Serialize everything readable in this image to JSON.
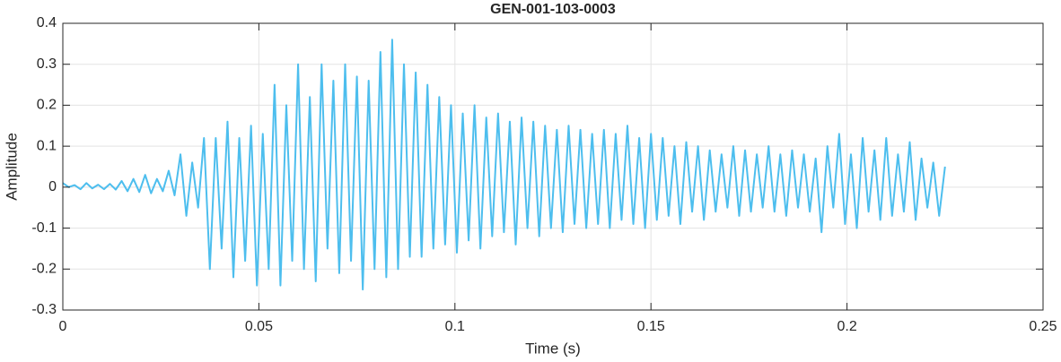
{
  "chart_data": {
    "type": "line",
    "title": "GEN-001-103-0003",
    "xlabel": "Time (s)",
    "ylabel": "Amplitude",
    "xlim": [
      0,
      0.25
    ],
    "ylim": [
      -0.3,
      0.4
    ],
    "xticks": [
      0,
      0.05,
      0.1,
      0.15,
      0.2,
      0.25
    ],
    "yticks": [
      -0.3,
      -0.2,
      -0.1,
      0,
      0.1,
      0.2,
      0.3,
      0.4
    ],
    "grid": true,
    "x": [
      0,
      0.0015,
      0.003,
      0.0045,
      0.006,
      0.0075,
      0.009,
      0.0105,
      0.012,
      0.0135,
      0.015,
      0.0165,
      0.018,
      0.0195,
      0.021,
      0.0225,
      0.024,
      0.0255,
      0.027,
      0.0285,
      0.03,
      0.0315,
      0.033,
      0.0345,
      0.036,
      0.0375,
      0.039,
      0.0405,
      0.042,
      0.0435,
      0.045,
      0.0465,
      0.048,
      0.0495,
      0.051,
      0.0525,
      0.054,
      0.0555,
      0.057,
      0.0585,
      0.06,
      0.0615,
      0.063,
      0.0645,
      0.066,
      0.0675,
      0.069,
      0.0705,
      0.072,
      0.0735,
      0.075,
      0.0765,
      0.078,
      0.0795,
      0.081,
      0.0825,
      0.084,
      0.0855,
      0.087,
      0.0885,
      0.09,
      0.0915,
      0.093,
      0.0945,
      0.096,
      0.0975,
      0.099,
      0.1005,
      0.102,
      0.1035,
      0.105,
      0.1065,
      0.108,
      0.1095,
      0.111,
      0.1125,
      0.114,
      0.1155,
      0.117,
      0.1185,
      0.12,
      0.1215,
      0.123,
      0.1245,
      0.126,
      0.1275,
      0.129,
      0.1305,
      0.132,
      0.1335,
      0.135,
      0.1365,
      0.138,
      0.1395,
      0.141,
      0.1425,
      0.144,
      0.1455,
      0.147,
      0.1485,
      0.15,
      0.1515,
      0.153,
      0.1545,
      0.156,
      0.1575,
      0.159,
      0.1605,
      0.162,
      0.1635,
      0.165,
      0.1665,
      0.168,
      0.1695,
      0.171,
      0.1725,
      0.174,
      0.1755,
      0.177,
      0.1785,
      0.18,
      0.1815,
      0.183,
      0.1845,
      0.186,
      0.1875,
      0.189,
      0.1905,
      0.192,
      0.1935,
      0.195,
      0.1965,
      0.198,
      0.1995,
      0.201,
      0.2025,
      0.204,
      0.2055,
      0.207,
      0.2085,
      0.21,
      0.2115,
      0.213,
      0.2145,
      0.216,
      0.2175,
      0.219,
      0.2205,
      0.222,
      0.2235,
      0.225
    ],
    "series": [
      {
        "color": "#4dbeee",
        "values": [
          0.01,
          0,
          0.005,
          -0.005,
          0.01,
          -0.003,
          0.006,
          -0.005,
          0.008,
          -0.006,
          0.015,
          -0.01,
          0.02,
          -0.012,
          0.03,
          -0.015,
          0.02,
          -0.01,
          0.04,
          -0.02,
          0.08,
          -0.07,
          0.06,
          -0.05,
          0.12,
          -0.2,
          0.12,
          -0.15,
          0.16,
          -0.22,
          0.12,
          -0.18,
          0.15,
          -0.24,
          0.13,
          -0.2,
          0.25,
          -0.24,
          0.2,
          -0.18,
          0.3,
          -0.2,
          0.22,
          -0.23,
          0.3,
          -0.15,
          0.26,
          -0.21,
          0.3,
          -0.18,
          0.27,
          -0.25,
          0.26,
          -0.2,
          0.33,
          -0.22,
          0.36,
          -0.2,
          0.3,
          -0.17,
          0.28,
          -0.17,
          0.25,
          -0.15,
          0.22,
          -0.14,
          0.2,
          -0.16,
          0.18,
          -0.13,
          0.2,
          -0.15,
          0.17,
          -0.12,
          0.18,
          -0.11,
          0.16,
          -0.14,
          0.17,
          -0.1,
          0.16,
          -0.12,
          0.15,
          -0.1,
          0.14,
          -0.11,
          0.15,
          -0.09,
          0.14,
          -0.1,
          0.13,
          -0.09,
          0.14,
          -0.1,
          0.13,
          -0.08,
          0.15,
          -0.09,
          0.12,
          -0.1,
          0.13,
          -0.08,
          0.12,
          -0.07,
          0.1,
          -0.09,
          0.11,
          -0.06,
          0.1,
          -0.08,
          0.09,
          -0.06,
          0.08,
          -0.05,
          0.1,
          -0.07,
          0.09,
          -0.06,
          0.08,
          -0.05,
          0.1,
          -0.06,
          0.08,
          -0.07,
          0.09,
          -0.05,
          0.08,
          -0.06,
          0.07,
          -0.11,
          0.1,
          -0.05,
          0.13,
          -0.09,
          0.08,
          -0.1,
          0.12,
          -0.06,
          0.09,
          -0.08,
          0.12,
          -0.07,
          0.08,
          -0.06,
          0.11,
          -0.08,
          0.07,
          -0.05,
          0.06,
          -0.07,
          0.05
        ]
      }
    ]
  }
}
